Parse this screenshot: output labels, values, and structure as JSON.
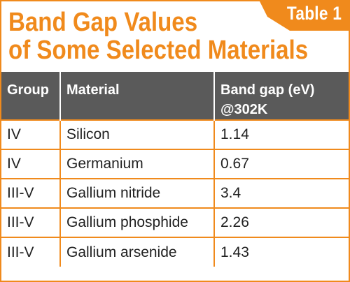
{
  "tab_label": "Table 1",
  "title_line1": "Band Gap Values",
  "title_line2": "of Some Selected Materials",
  "headers": {
    "group": "Group",
    "material": "Material",
    "band_gap_line1": "Band gap (eV)",
    "band_gap_line2": "@302K"
  },
  "rows": [
    {
      "group": "IV",
      "material": "Silicon",
      "band_gap": "1.14"
    },
    {
      "group": "IV",
      "material": "Germanium",
      "band_gap": "0.67"
    },
    {
      "group": "III-V",
      "material": "Gallium nitride",
      "band_gap": "3.4"
    },
    {
      "group": "III-V",
      "material": "Gallium phosphide",
      "band_gap": "2.26"
    },
    {
      "group": "III-V",
      "material": "Gallium arsenide",
      "band_gap": "1.43"
    }
  ],
  "colors": {
    "accent": "#f08a1c",
    "header_bg": "#5a5a5a",
    "text": "#222222"
  }
}
